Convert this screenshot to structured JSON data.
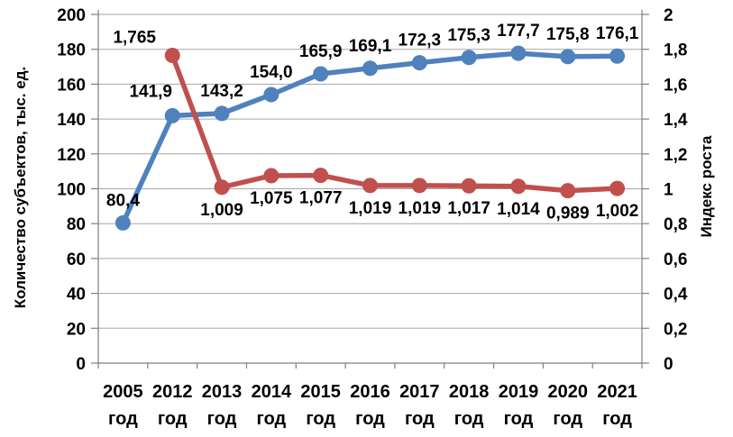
{
  "chart_data": {
    "type": "line",
    "title": "",
    "legend": "none",
    "grid": true,
    "categories": [
      "2005",
      "2012",
      "2013",
      "2014",
      "2015",
      "2016",
      "2017",
      "2018",
      "2019",
      "2020",
      "2021"
    ],
    "category_suffix": "год",
    "left_axis": {
      "title": "Количество субъектов, тыс. ед.",
      "min": 0,
      "max": 200,
      "step": 20,
      "tick_labels": [
        "0",
        "20",
        "40",
        "60",
        "80",
        "100",
        "120",
        "140",
        "160",
        "180",
        "200"
      ]
    },
    "right_axis": {
      "title": "Индекс роста",
      "min": 0,
      "max": 2,
      "step": 0.2,
      "tick_labels": [
        "0",
        "0,2",
        "0,4",
        "0,6",
        "0,8",
        "1",
        "1,2",
        "1,4",
        "1,6",
        "1,8",
        "2"
      ]
    },
    "series": [
      {
        "name": "Количество субъектов, тыс. ед.",
        "axis": "left",
        "color": "#4F81BD",
        "values": [
          80.4,
          141.9,
          143.2,
          154.0,
          165.9,
          169.1,
          172.3,
          175.3,
          177.7,
          175.8,
          176.1
        ],
        "labels": [
          "80,4",
          "141,9",
          "143,2",
          "154,0",
          "165,9",
          "169,1",
          "172,3",
          "175,3",
          "177,7",
          "175,8",
          "176,1"
        ]
      },
      {
        "name": "Индекс роста",
        "axis": "right",
        "color": "#C0504D",
        "values": [
          null,
          1.765,
          1.009,
          1.075,
          1.077,
          1.019,
          1.019,
          1.017,
          1.014,
          0.989,
          1.002
        ],
        "labels": [
          null,
          "1,765",
          "1,009",
          "1,075",
          "1,077",
          "1,019",
          "1,019",
          "1,017",
          "1,014",
          "0,989",
          "1,002"
        ]
      }
    ],
    "colors": {
      "grid": "#A6A6A6",
      "axis": "#7F7F7F",
      "text": "#000000"
    }
  }
}
